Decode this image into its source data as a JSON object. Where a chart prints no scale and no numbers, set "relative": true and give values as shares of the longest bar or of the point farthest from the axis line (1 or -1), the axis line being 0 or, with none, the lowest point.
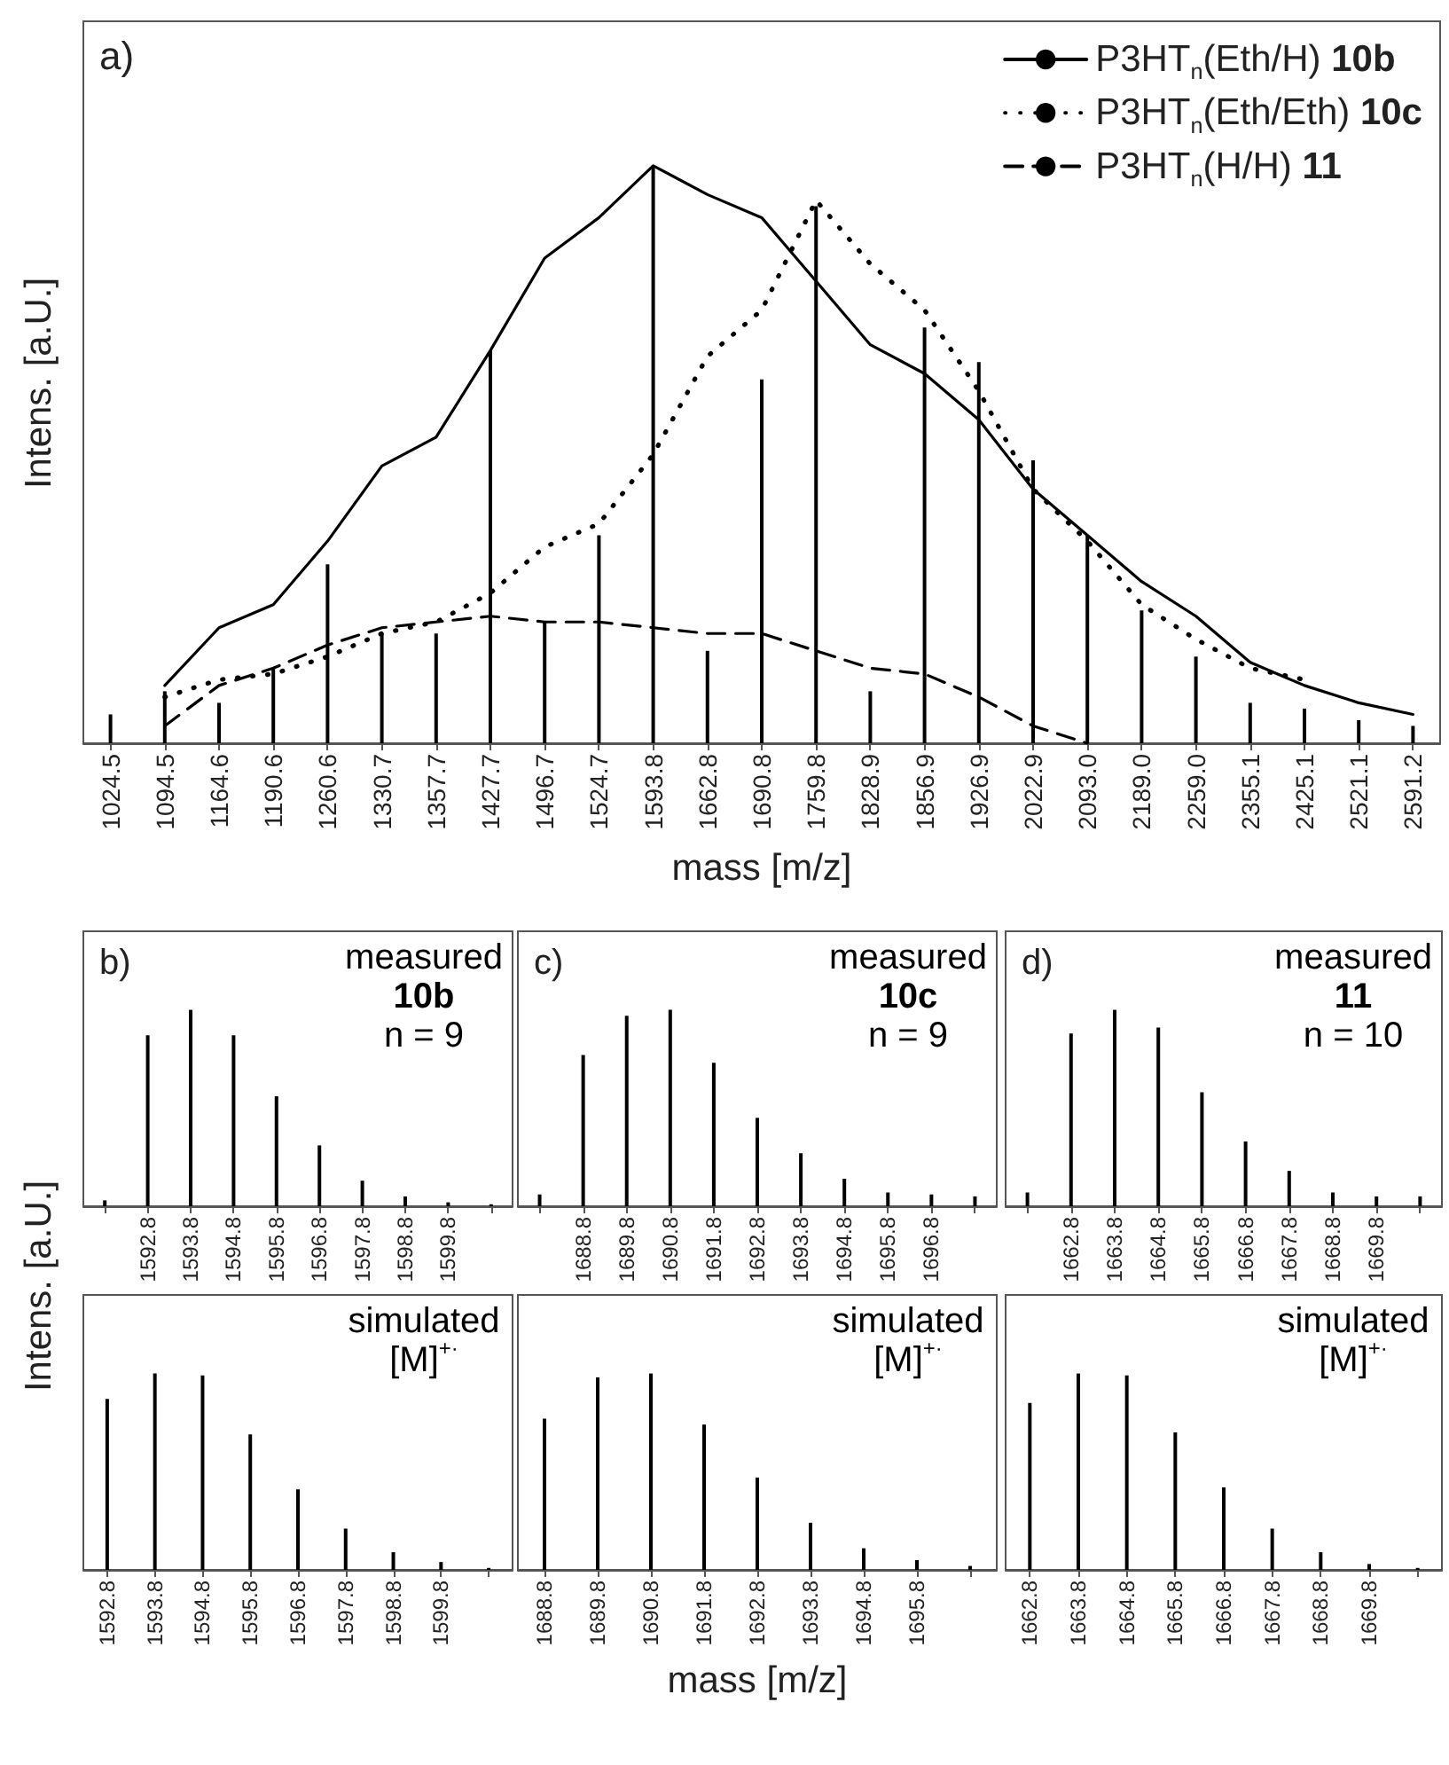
{
  "chart_data": [
    {
      "type": "bar",
      "title": "a)",
      "xlabel": "mass [m/z]",
      "ylabel": "Intens. [a.U.]",
      "relative": true,
      "tick_labels": "x",
      "legend": "top right",
      "marker": "none",
      "categories": [
        "1024.5",
        "1094.5",
        "1164.6",
        "1190.6",
        "1260.6",
        "1330.7",
        "1357.7",
        "1427.7",
        "1496.7",
        "1524.7",
        "1593.8",
        "1662.8",
        "1690.8",
        "1759.8",
        "1828.9",
        "1856.9",
        "1926.9",
        "2022.9",
        "2093.0",
        "2189.0",
        "2259.0",
        "2355.1",
        "2425.1",
        "2521.1",
        "2591.2"
      ],
      "series": [
        {
          "color": "#000000",
          "values": [
            0.05,
            0.09,
            0.07,
            0.13,
            0.31,
            0.19,
            0.19,
            0.68,
            0.21,
            0.36,
            1,
            0.16,
            0.63,
            0.93,
            0.09,
            0.72,
            0.66,
            0.49,
            0.36,
            0.23,
            0.15,
            0.07,
            0.06,
            0.04,
            0.03
          ]
        },
        {
          "type": "line",
          "name": "P3HT$_{n}$(Eth/H) 10b",
          "color": "#000000",
          "line_style": "solid",
          "values": [
            null,
            0.1,
            0.2,
            0.24,
            0.35,
            0.48,
            0.53,
            0.68,
            0.84,
            0.91,
            1.0,
            0.95,
            0.91,
            0.8,
            0.69,
            0.64,
            0.56,
            0.44,
            0.36,
            0.28,
            0.22,
            0.14,
            0.1,
            0.07,
            0.05
          ]
        },
        {
          "type": "line",
          "name": "P3HT$_{n}$(Eth/Eth) 10c",
          "color": "#000000",
          "line_style": "dotted",
          "values": [
            null,
            0.08,
            0.11,
            0.12,
            0.15,
            0.19,
            0.21,
            0.26,
            0.34,
            0.38,
            0.5,
            0.67,
            0.75,
            0.94,
            0.83,
            0.75,
            0.61,
            0.44,
            0.35,
            0.24,
            0.18,
            0.13,
            0.11,
            null,
            null
          ]
        },
        {
          "type": "line",
          "name": "P3HT$_{n}$(H/H) 11",
          "color": "#000000",
          "line_style": "dashed",
          "values": [
            null,
            0.03,
            0.1,
            0.13,
            0.17,
            0.2,
            0.21,
            0.22,
            0.21,
            0.21,
            0.2,
            0.19,
            0.19,
            0.16,
            0.13,
            0.12,
            0.08,
            0.03,
            0.0,
            null,
            null,
            null,
            null,
            null,
            null
          ]
        }
      ]
    },
    {
      "type": "bar",
      "title": "b)",
      "relative": true,
      "tick_labels": "x",
      "color": "#000000",
      "categories": [
        null,
        "1592.8",
        "1593.8",
        "1594.8",
        "1595.8",
        "1596.8",
        "1597.8",
        "1598.8",
        "1599.8",
        null
      ],
      "values": [
        0.03,
        0.87,
        1,
        0.87,
        0.56,
        0.31,
        0.13,
        0.05,
        0.02,
        0.01
      ],
      "annotations": [
        "measured",
        "10b",
        "n = 9"
      ]
    },
    {
      "type": "bar",
      "title": "c)",
      "relative": true,
      "tick_labels": "x",
      "color": "#000000",
      "categories": [
        null,
        "1688.8",
        "1689.8",
        "1690.8",
        "1691.8",
        "1692.8",
        "1693.8",
        "1694.8",
        "1695.8",
        "1696.8",
        null
      ],
      "values": [
        0.06,
        0.77,
        0.97,
        1,
        0.73,
        0.45,
        0.27,
        0.14,
        0.07,
        0.06,
        0.05
      ],
      "annotations": [
        "measured",
        "10c",
        "n = 9"
      ]
    },
    {
      "type": "bar",
      "title": "d)",
      "relative": true,
      "tick_labels": "x",
      "color": "#000000",
      "categories": [
        null,
        "1662.8",
        "1663.8",
        "1664.8",
        "1665.8",
        "1666.8",
        "1667.8",
        "1668.8",
        "1669.8",
        null
      ],
      "values": [
        0.07,
        0.88,
        1,
        0.91,
        0.58,
        0.33,
        0.18,
        0.07,
        0.05,
        0.05
      ],
      "annotations": [
        "measured",
        "11",
        "n = 10"
      ]
    },
    {
      "type": "bar",
      "ylabel": "Intens. [a.U.]",
      "relative": true,
      "tick_labels": "x",
      "color": "#000000",
      "categories": [
        "1592.8",
        "1593.8",
        "1594.8",
        "1595.8",
        "1596.8",
        "1597.8",
        "1598.8",
        "1599.8",
        null
      ],
      "values": [
        0.87,
        1,
        0.99,
        0.69,
        0.41,
        0.21,
        0.09,
        0.04,
        0.01
      ],
      "annotations": [
        "simulated",
        "[M]$^{+·}$"
      ]
    },
    {
      "type": "bar",
      "xlabel": "mass [m/z]",
      "relative": true,
      "tick_labels": "x",
      "color": "#000000",
      "categories": [
        "1688.8",
        "1689.8",
        "1690.8",
        "1691.8",
        "1692.8",
        "1693.8",
        "1694.8",
        "1695.8",
        null
      ],
      "values": [
        0.77,
        0.98,
        1,
        0.74,
        0.47,
        0.24,
        0.11,
        0.05,
        0.02
      ],
      "annotations": [
        "simulated",
        "[M]$^{+·}$"
      ]
    },
    {
      "type": "bar",
      "relative": true,
      "tick_labels": "x",
      "color": "#000000",
      "categories": [
        "1662.8",
        "1663.8",
        "1664.8",
        "1665.8",
        "1666.8",
        "1667.8",
        "1668.8",
        "1669.8",
        null
      ],
      "values": [
        0.85,
        1,
        0.99,
        0.7,
        0.42,
        0.21,
        0.09,
        0.03,
        0.01
      ],
      "annotations": [
        "simulated",
        "[M]$^{+·}$"
      ]
    }
  ]
}
